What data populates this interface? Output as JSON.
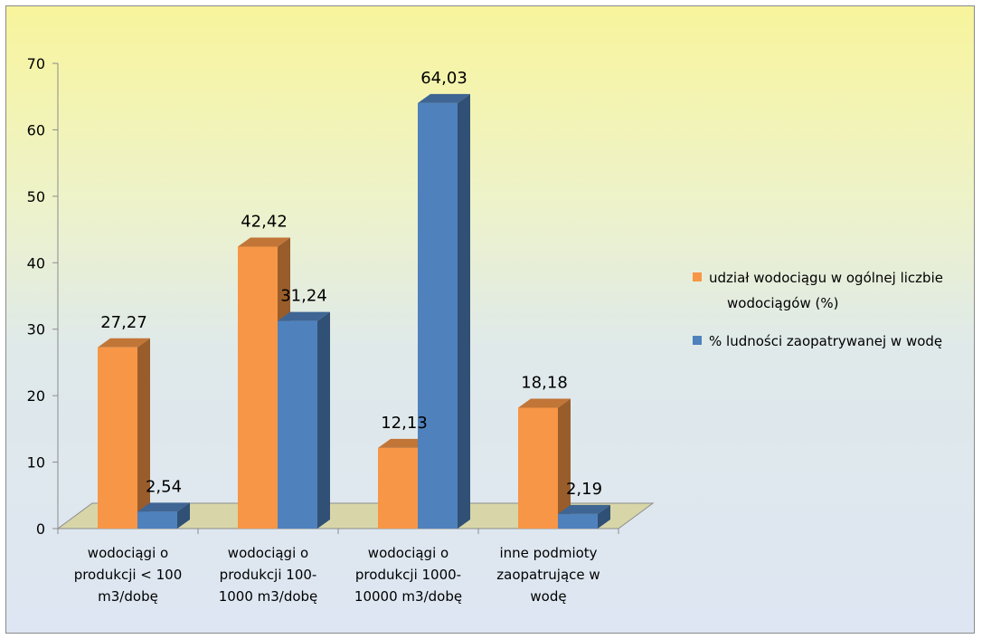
{
  "chart_data": {
    "type": "bar",
    "categories": [
      [
        "wodociągi o",
        "produkcji < 100",
        "m3/dobę"
      ],
      [
        "wodociągi o",
        "produkcji 100-",
        "1000 m3/dobę"
      ],
      [
        "wodociągi o",
        "produkcji 1000-",
        "10000 m3/dobę"
      ],
      [
        "inne podmioty",
        "zaopatrujące w",
        "wodę"
      ]
    ],
    "series": [
      {
        "name": "udział wodociągu w ogólnej liczbie wodociągów (%)",
        "legend_lines": [
          "udział wodociągu w ogólnej liczbie",
          "wodociągów (%)"
        ],
        "values": [
          27.27,
          42.42,
          12.13,
          18.18
        ],
        "labels": [
          "27,27",
          "42,42",
          "12,13",
          "18,18"
        ],
        "color": "#f79646"
      },
      {
        "name": "% ludności zaopatrywanej w wodę",
        "legend_lines": [
          "% ludności zaopatrywanej w wodę"
        ],
        "values": [
          2.54,
          31.24,
          64.03,
          2.19
        ],
        "labels": [
          "2,54",
          "31,24",
          "64,03",
          "2,19"
        ],
        "color": "#4f81bd"
      }
    ],
    "yticks": [
      0,
      10,
      20,
      30,
      40,
      50,
      60,
      70
    ],
    "ylim": [
      0,
      70
    ],
    "legend_position": "right",
    "grid": false,
    "style": "3d-clustered-column"
  }
}
